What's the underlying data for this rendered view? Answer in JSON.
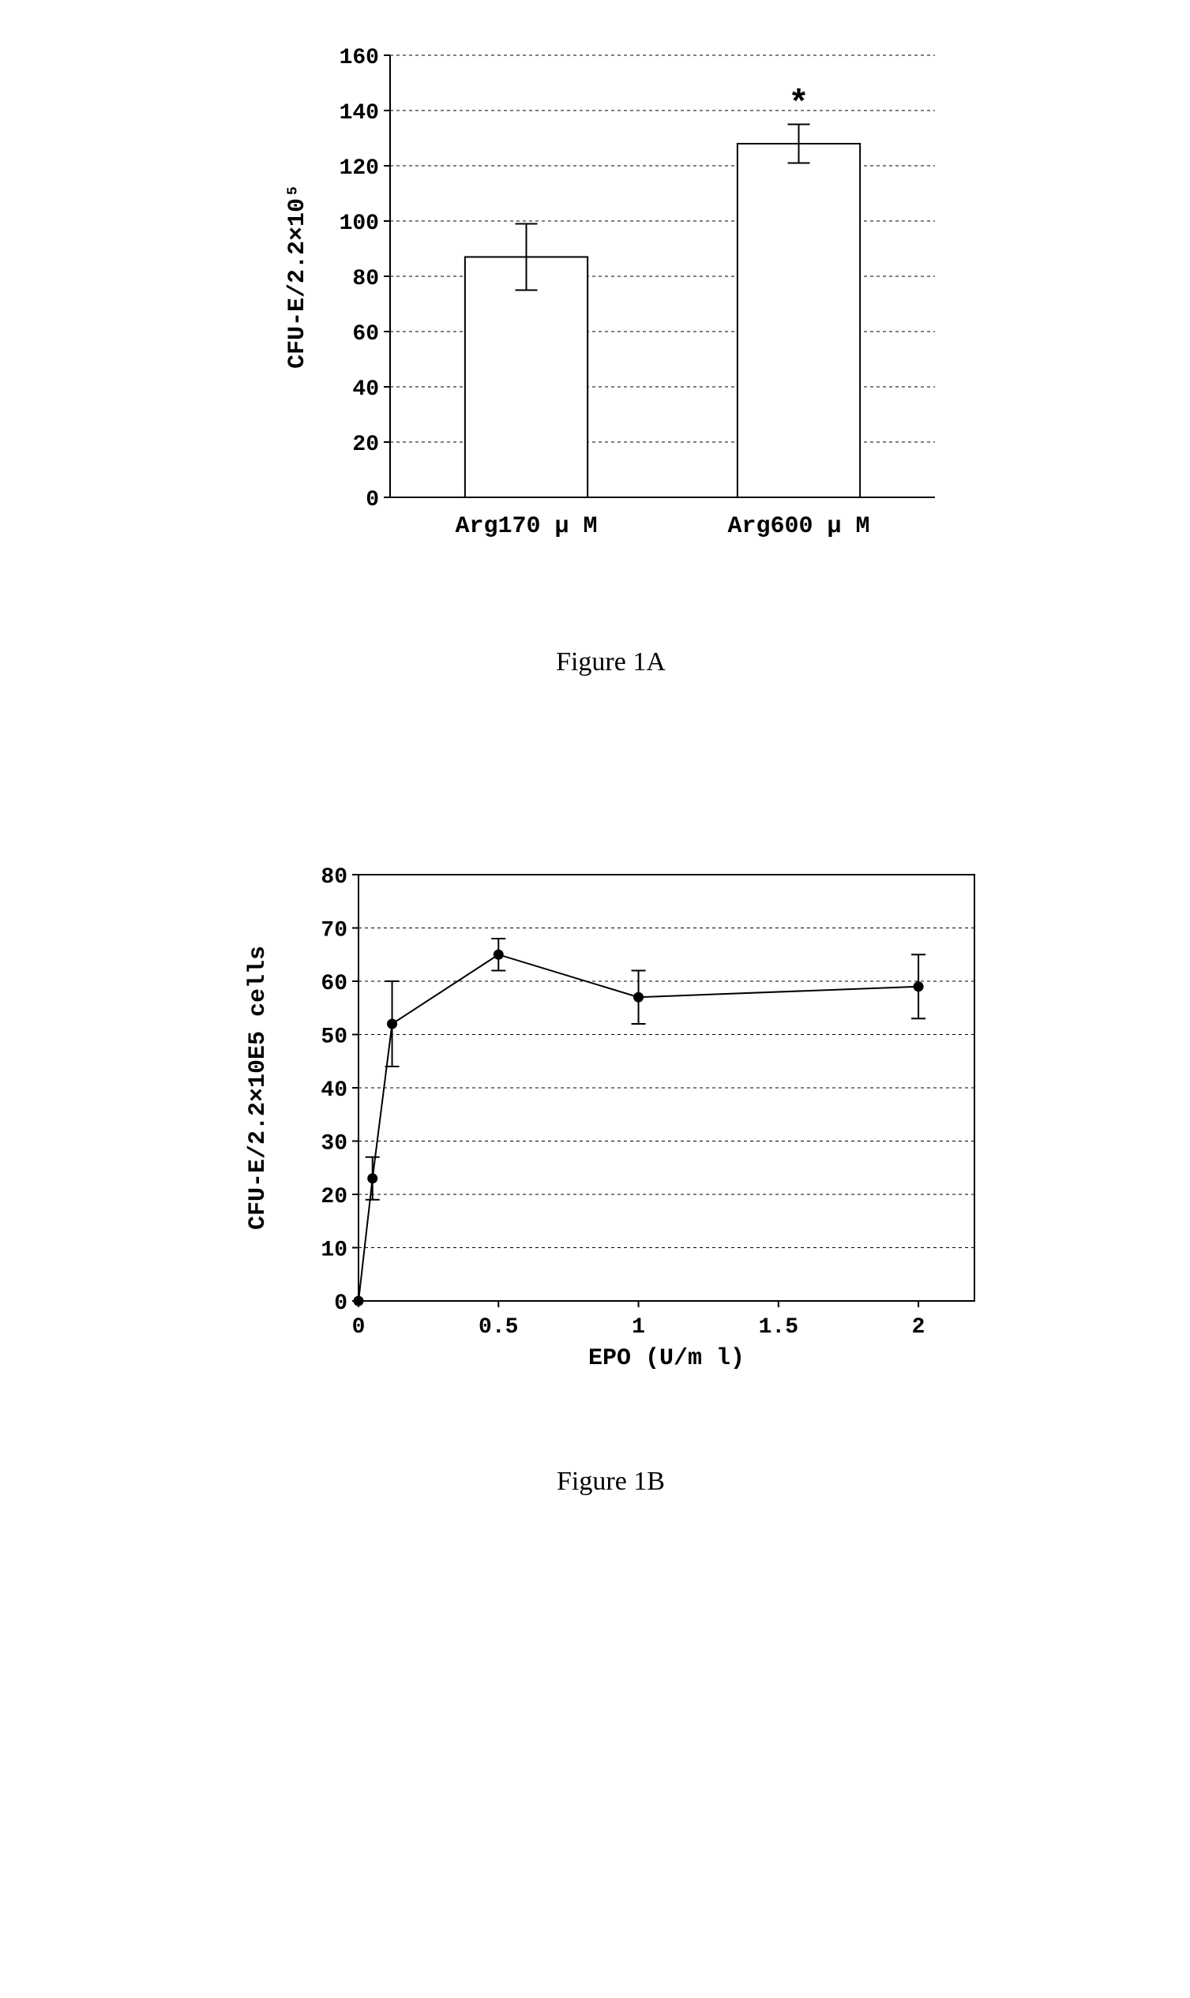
{
  "figureA": {
    "type": "bar",
    "caption": "Figure 1A",
    "ylabel": "CFU-E/2.2×10⁵",
    "ylim": [
      0,
      160
    ],
    "ytick_step": 20,
    "yticks": [
      0,
      20,
      40,
      60,
      80,
      100,
      120,
      140,
      160
    ],
    "categories": [
      "Arg170 μ M",
      "Arg600 μ M"
    ],
    "bars": [
      {
        "value": 87,
        "err_low": 12,
        "err_high": 12,
        "fill": "#ffffff",
        "annotation": ""
      },
      {
        "value": 128,
        "err_low": 7,
        "err_high": 7,
        "fill": "#ffffff",
        "annotation": "*"
      }
    ],
    "bar_stroke": "#000000",
    "bar_width": 0.45,
    "grid_color": "#000000",
    "grid_dash": "4 4",
    "axis_color": "#000000",
    "label_fontsize": 30,
    "tick_fontsize": 28,
    "annotation_fontsize": 44,
    "background_color": "#ffffff",
    "axis_line_width": 2
  },
  "figureB": {
    "type": "line",
    "caption": "Figure 1B",
    "xlabel": "EPO (U/m l)",
    "ylabel": "CFU-E/2.2×10E5 cells",
    "xlim": [
      0,
      2.2
    ],
    "ylim": [
      0,
      80
    ],
    "xticks": [
      0,
      0.5,
      1,
      1.5,
      2
    ],
    "yticks": [
      0,
      10,
      20,
      30,
      40,
      50,
      60,
      70,
      80
    ],
    "points": [
      {
        "x": 0.0,
        "y": 0,
        "err_low": 0,
        "err_high": 0
      },
      {
        "x": 0.05,
        "y": 23,
        "err_low": 4,
        "err_high": 4
      },
      {
        "x": 0.12,
        "y": 52,
        "err_low": 8,
        "err_high": 8
      },
      {
        "x": 0.5,
        "y": 65,
        "err_low": 3,
        "err_high": 3
      },
      {
        "x": 1.0,
        "y": 57,
        "err_low": 5,
        "err_high": 5
      },
      {
        "x": 2.0,
        "y": 59,
        "err_low": 6,
        "err_high": 6
      }
    ],
    "line_color": "#000000",
    "marker_fill": "#000000",
    "marker_radius": 6,
    "line_width": 2,
    "grid_color": "#000000",
    "grid_dash": "4 4",
    "axis_color": "#000000",
    "label_fontsize": 30,
    "tick_fontsize": 28,
    "background_color": "#ffffff",
    "axis_line_width": 2
  }
}
